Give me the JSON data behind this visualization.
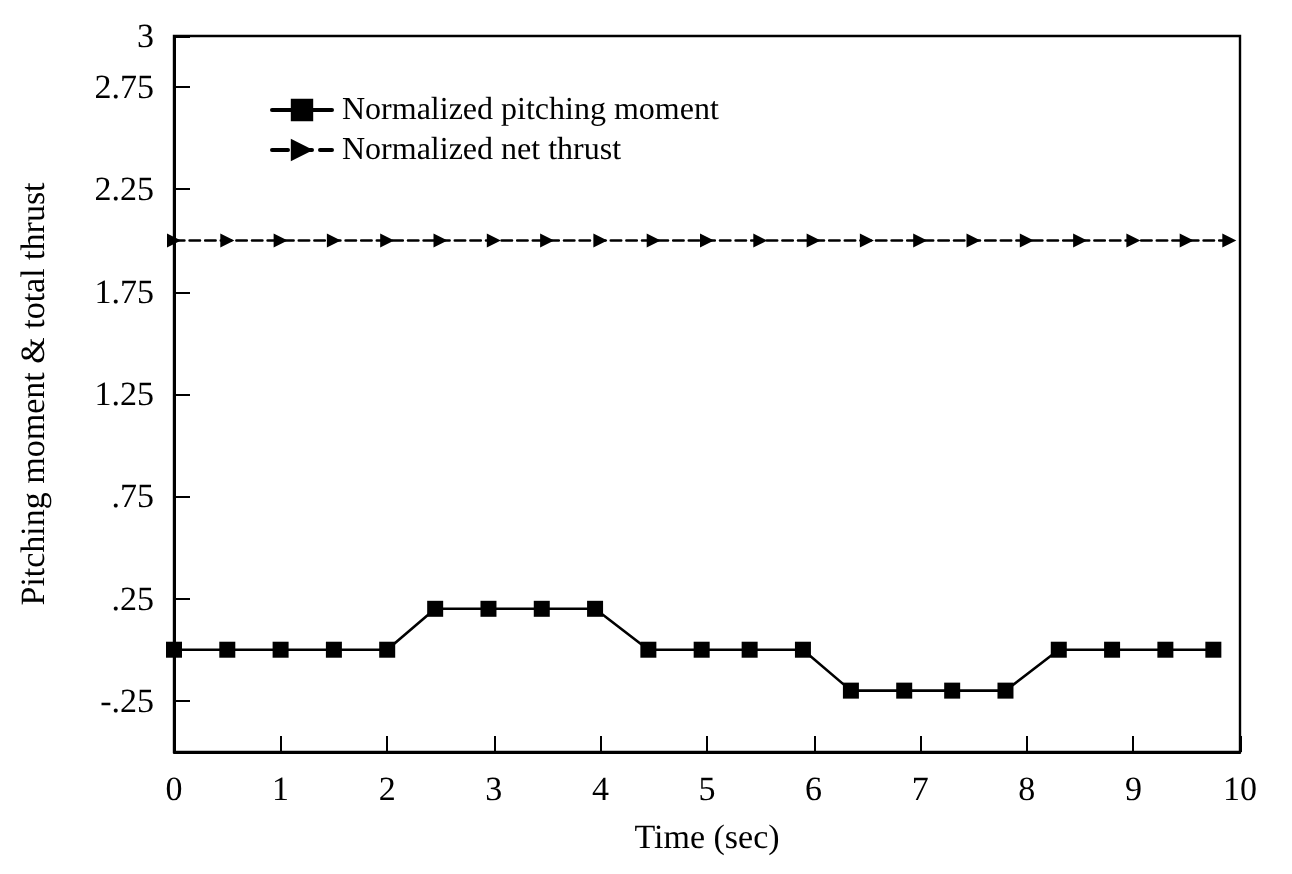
{
  "chart_data": {
    "type": "line",
    "xlabel": "Time (sec)",
    "ylabel": "Pitching moment & total thrust",
    "xlim": [
      0,
      10
    ],
    "xticks": [
      0,
      1,
      2,
      3,
      4,
      5,
      6,
      7,
      8,
      9,
      10
    ],
    "ylim": [
      -0.5,
      3
    ],
    "yticks": [
      {
        "value": -0.25,
        "label": "-.25"
      },
      {
        "value": 0.25,
        "label": ".25"
      },
      {
        "value": 0.75,
        "label": ".75"
      },
      1.25,
      1.75,
      2.25,
      2.75,
      3
    ],
    "grid": false,
    "legend": "top left",
    "series": [
      {
        "name": "Normalized pitching moment",
        "color": "#000000",
        "marker": "square",
        "line_style": "solid",
        "x": [
          0,
          0.5,
          1,
          1.5,
          2,
          2.45,
          2.95,
          3.45,
          3.95,
          4.45,
          4.95,
          5.4,
          5.9,
          6.35,
          6.85,
          7.3,
          7.8,
          8.3,
          8.8,
          9.3,
          9.75
        ],
        "values": [
          0,
          0,
          0,
          0,
          0,
          0.2,
          0.2,
          0.2,
          0.2,
          0,
          0,
          0,
          0,
          -0.2,
          -0.2,
          -0.2,
          -0.2,
          0,
          0,
          0,
          0
        ]
      },
      {
        "name": "Normalized net thrust",
        "color": "#000000",
        "marker": "triangle",
        "line_style": "dashed",
        "x": [
          0,
          0.5,
          1,
          1.5,
          2,
          2.5,
          3,
          3.5,
          4,
          4.5,
          5,
          5.5,
          6,
          6.5,
          7,
          7.5,
          8,
          8.5,
          9,
          9.5,
          9.9
        ],
        "values": [
          2,
          2,
          2,
          2,
          2,
          2,
          2,
          2,
          2,
          2,
          2,
          2,
          2,
          2,
          2,
          2,
          2,
          2,
          2,
          2,
          2
        ]
      }
    ]
  }
}
